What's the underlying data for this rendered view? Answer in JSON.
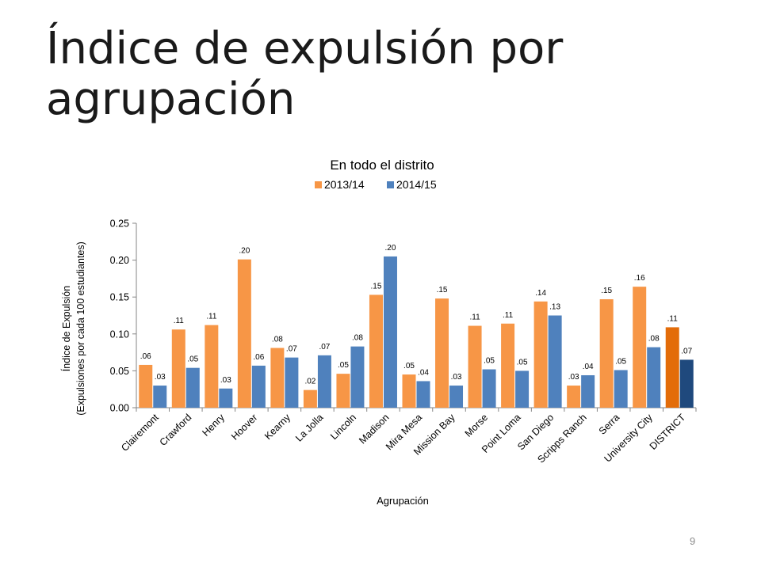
{
  "slide": {
    "title": "Índice de expulsión por agrupación",
    "page_number": "9"
  },
  "colors": {
    "series1": "#F79646",
    "series2": "#4F81BD",
    "highlight1": "#E36C09",
    "highlight2": "#1F497D",
    "axis": "#868686",
    "text": "#000000"
  },
  "chart_data": {
    "type": "bar",
    "title": "En todo el distrito",
    "xlabel": "Agrupación",
    "ylabel": "Índice de Expulsión",
    "ylabel2": "(Expulsiones por cada 100 estudiantes)",
    "ylim": [
      0,
      0.25
    ],
    "yticks": [
      0,
      0.05,
      0.1,
      0.15,
      0.2,
      0.25
    ],
    "ytick_labels": [
      "0.00",
      "0.05",
      "0.10",
      "0.15",
      "0.20",
      "0.25"
    ],
    "legend_position": "top",
    "grid": false,
    "categories": [
      "Clairemont",
      "Crawford",
      "Henry",
      "Hoover",
      "Kearny",
      "La Jolla",
      "Lincoln",
      "Madison",
      "Mira Mesa",
      "Mission Bay",
      "Morse",
      "Point Loma",
      "San Diego",
      "Scripps Ranch",
      "Serra",
      "University City",
      "DISTRICT"
    ],
    "highlight_category": "DISTRICT",
    "series": [
      {
        "name": "2013/14",
        "values": [
          0.058,
          0.106,
          0.112,
          0.201,
          0.081,
          0.024,
          0.046,
          0.153,
          0.045,
          0.148,
          0.111,
          0.114,
          0.144,
          0.03,
          0.147,
          0.164,
          0.109
        ],
        "labels": [
          ".06",
          ".11",
          ".11",
          ".20",
          ".08",
          ".02",
          ".05",
          ".15",
          ".05",
          ".15",
          ".11",
          ".11",
          ".14",
          ".03",
          ".15",
          ".16",
          ".11"
        ]
      },
      {
        "name": "2014/15",
        "values": [
          0.03,
          0.054,
          0.026,
          0.057,
          0.068,
          0.071,
          0.083,
          0.205,
          0.036,
          0.03,
          0.052,
          0.05,
          0.125,
          0.044,
          0.051,
          0.082,
          0.065
        ],
        "labels": [
          ".03",
          ".05",
          ".03",
          ".06",
          ".07",
          ".07",
          ".08",
          ".20",
          ".04",
          ".03",
          ".05",
          ".05",
          ".13",
          ".04",
          ".05",
          ".08",
          ".07"
        ]
      }
    ]
  }
}
